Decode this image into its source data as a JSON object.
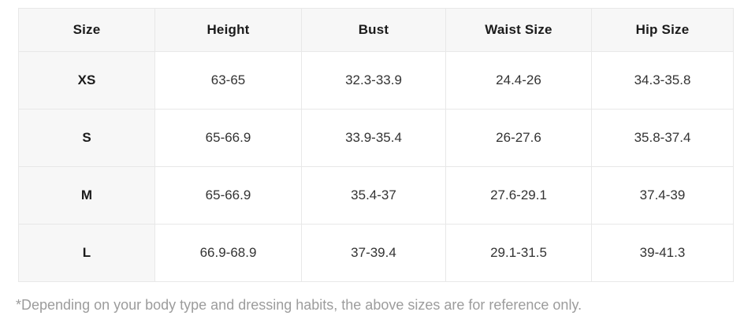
{
  "table": {
    "columns": [
      "Size",
      "Height",
      "Bust",
      "Waist Size",
      "Hip Size"
    ],
    "rows": [
      {
        "cells": [
          "XS",
          "63-65",
          "32.3-33.9",
          "24.4-26",
          "34.3-35.8"
        ]
      },
      {
        "cells": [
          "S",
          "65-66.9",
          "33.9-35.4",
          "26-27.6",
          "35.8-37.4"
        ]
      },
      {
        "cells": [
          "M",
          "65-66.9",
          "35.4-37",
          "27.6-29.1",
          "37.4-39"
        ]
      },
      {
        "cells": [
          "L",
          "66.9-68.9",
          "37-39.4",
          "29.1-31.5",
          "39-41.3"
        ]
      }
    ]
  },
  "footnote": {
    "text": "*Depending on your body type and dressing habits, the above sizes are for reference only."
  },
  "colors": {
    "header_background": "#f7f7f7",
    "size_column_background": "#f7f7f7",
    "grid_border": "#e8e8e8",
    "header_text": "#1b1b1b",
    "cell_text": "#333333",
    "footnote_text": "#9c9c9c"
  }
}
